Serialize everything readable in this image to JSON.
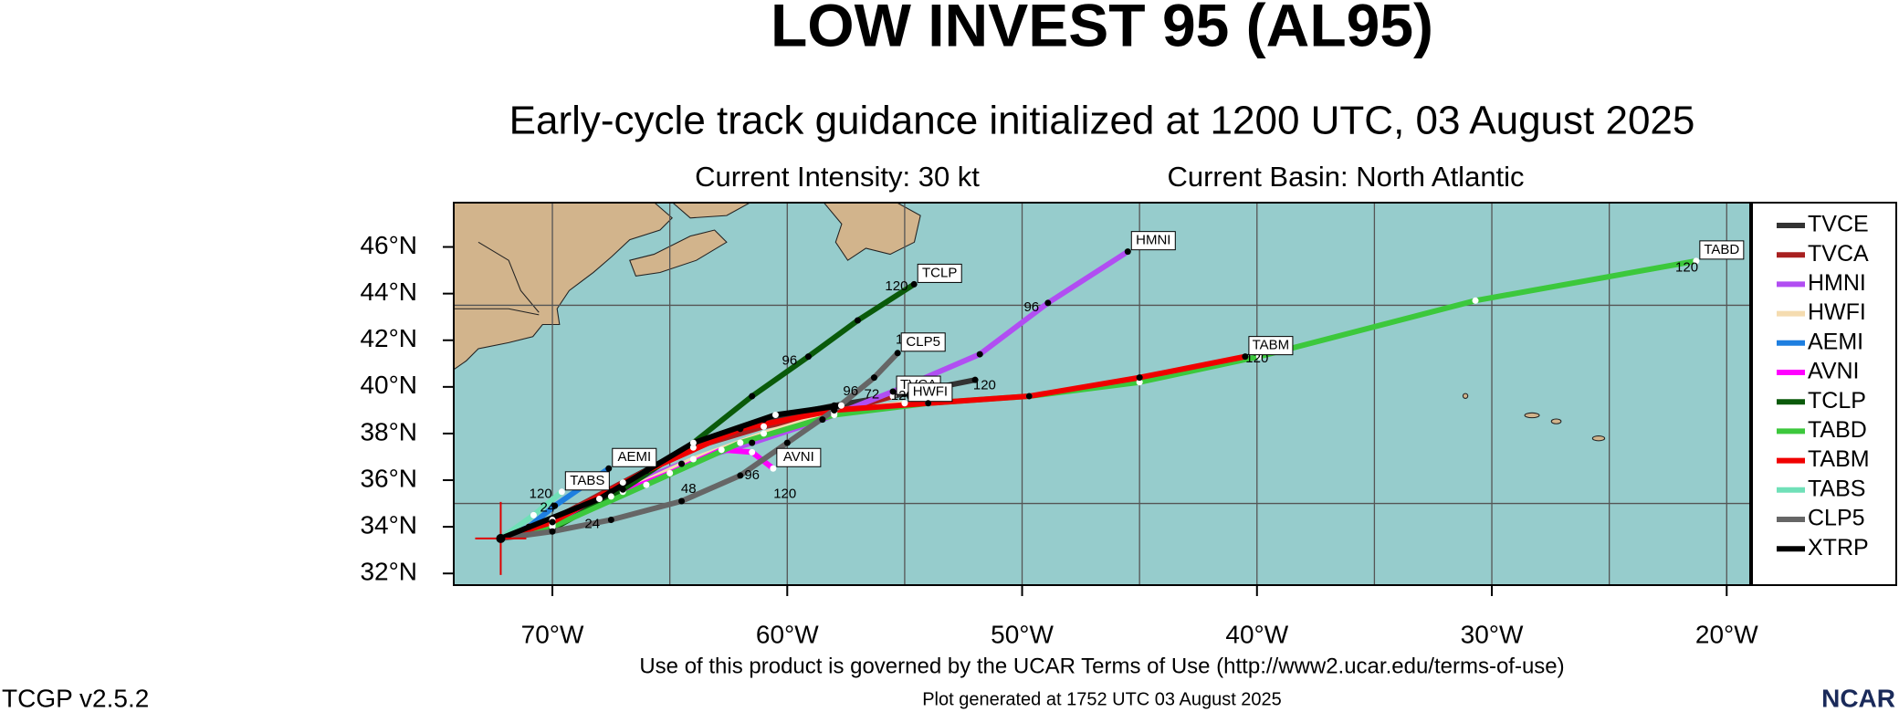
{
  "chart_data": {
    "type": "track_map",
    "title": "LOW INVEST 95 (AL95)",
    "subtitle": "Early-cycle track guidance initialized at 1200 UTC, 03 August 2025",
    "annotations": {
      "intensity": "Current Intensity: 30 kt",
      "basin": "Current Basin: North Atlantic"
    },
    "footer": {
      "terms": "Use of this product is governed by the UCAR Terms of Use (http://www2.ucar.edu/terms-of-use)",
      "version": "TCGP v2.5.2",
      "generated": "Plot generated at 1752 UTC   03 August 2025",
      "logo": "NCAR"
    },
    "xlim": [
      -74.2,
      -19
    ],
    "ylim": [
      31.5,
      47.9
    ],
    "xticks": [
      {
        "value": -70,
        "label": "70°W"
      },
      {
        "value": -60,
        "label": "60°W"
      },
      {
        "value": -50,
        "label": "50°W"
      },
      {
        "value": -40,
        "label": "40°W"
      },
      {
        "value": -30,
        "label": "30°W"
      },
      {
        "value": -20,
        "label": "20°W"
      }
    ],
    "yticks": [
      {
        "value": 32,
        "label": "32°N"
      },
      {
        "value": 34,
        "label": "34°N"
      },
      {
        "value": 36,
        "label": "36°N"
      },
      {
        "value": 38,
        "label": "38°N"
      },
      {
        "value": 40,
        "label": "40°N"
      },
      {
        "value": 42,
        "label": "42°N"
      },
      {
        "value": 44,
        "label": "44°N"
      },
      {
        "value": 46,
        "label": "46°N"
      }
    ],
    "xgrid": [
      -70,
      -65,
      -60,
      -55,
      -50,
      -45,
      -40,
      -35,
      -30,
      -25,
      -20
    ],
    "ygrid": [
      35,
      43.5
    ],
    "current_position": {
      "x": -72.2,
      "y": 33.5,
      "color": "#e00000"
    },
    "series": [
      {
        "name": "TVCE",
        "color": "#333333",
        "end_label": false,
        "x": [
          -72.2,
          -70,
          -67,
          -64,
          -61,
          -58,
          -55,
          -52
        ],
        "y": [
          33.5,
          34.3,
          35.9,
          37.5,
          38.6,
          39.2,
          39.7,
          40.3
        ],
        "hour_labels": [
          {
            "x": -57.3,
            "y": 39.8,
            "hour": 96
          },
          {
            "x": -56.4,
            "y": 39.65,
            "hour": 72
          }
        ]
      },
      {
        "name": "TVCA",
        "color": "#a82020",
        "end_label": true,
        "x": [
          -72.2,
          -70,
          -67,
          -64,
          -61,
          -58,
          -55.5
        ],
        "y": [
          33.5,
          34.3,
          35.9,
          37.4,
          38.3,
          38.9,
          39.6
        ],
        "hour_labels": [
          {
            "x": -51.6,
            "y": 40.05,
            "hour": 120
          }
        ]
      },
      {
        "name": "HMNI",
        "color": "#b14ef2",
        "end_label": true,
        "x": [
          -72.2,
          -70,
          -67.5,
          -64.5,
          -61.5,
          -58.5,
          -55.5,
          -51.8,
          -48.9,
          -45.5
        ],
        "y": [
          33.5,
          34.2,
          35.5,
          36.7,
          37.6,
          38.6,
          39.8,
          41.4,
          43.6,
          45.8
        ],
        "hour_labels": [
          {
            "x": -49.6,
            "y": 43.4,
            "hour": 96
          }
        ]
      },
      {
        "name": "HWFI",
        "color": "#f5dcb0",
        "end_label": true,
        "x": [
          -72.2,
          -70,
          -67,
          -64,
          -61,
          -58,
          -55
        ],
        "y": [
          33.5,
          34.1,
          35.5,
          36.9,
          38,
          38.9,
          39.3
        ],
        "hour_labels": [
          {
            "x": -55.1,
            "y": 39.6,
            "hour": 120
          }
        ]
      },
      {
        "name": "AEMI",
        "color": "#1e7fe0",
        "end_label": true,
        "x": [
          -72.2,
          -71,
          -69.9,
          -68.6,
          -67.6
        ],
        "y": [
          33.5,
          34,
          34.9,
          35.8,
          36.5
        ],
        "hour_labels": []
      },
      {
        "name": "AVNI",
        "color": "#ff00ff",
        "end_label": true,
        "x": [
          -72.2,
          -70,
          -67.5,
          -65,
          -62.8,
          -61.5,
          -60.6
        ],
        "y": [
          33.5,
          34.1,
          35.3,
          36.3,
          37.3,
          37.2,
          36.5
        ],
        "hour_labels": [
          {
            "x": -61.5,
            "y": 36.2,
            "hour": 96
          },
          {
            "x": -60.1,
            "y": 35.4,
            "hour": 120
          }
        ]
      },
      {
        "name": "TCLP",
        "color": "#0a5a0a",
        "end_label": true,
        "x": [
          -72.2,
          -70,
          -67,
          -64,
          -61.5,
          -59.1,
          -57,
          -54.6
        ],
        "y": [
          33.5,
          33.9,
          35.6,
          37.6,
          39.6,
          41.3,
          42.85,
          44.4
        ],
        "hour_labels": [
          {
            "x": -59.9,
            "y": 41.1,
            "hour": 96
          },
          {
            "x": -55.35,
            "y": 44.3,
            "hour": 120
          }
        ]
      },
      {
        "name": "TABD",
        "color": "#3cc83c",
        "end_label": true,
        "x": [
          -72.2,
          -70,
          -66,
          -62,
          -58,
          -54,
          -49.7,
          -45,
          -39.9,
          -30.7,
          -21.3
        ],
        "y": [
          33.5,
          34,
          35.8,
          37.6,
          38.8,
          39.3,
          39.6,
          40.2,
          41.3,
          43.7,
          45.4
        ],
        "hour_labels": [
          {
            "x": -21.7,
            "y": 45.1,
            "hour": 120
          }
        ]
      },
      {
        "name": "TABM",
        "color": "#f00000",
        "end_label": true,
        "x": [
          -72.2,
          -70,
          -66,
          -62,
          -58,
          -54,
          -49.7,
          -45,
          -40.5
        ],
        "y": [
          33.5,
          34.2,
          36.4,
          38.2,
          39,
          39.3,
          39.6,
          40.4,
          41.3
        ],
        "hour_labels": [
          {
            "x": -40,
            "y": 41.2,
            "hour": 120
          }
        ]
      },
      {
        "name": "TABS",
        "color": "#70e0b8",
        "end_label": true,
        "x": [
          -72.2,
          -70.8,
          -69.6
        ],
        "y": [
          33.5,
          34.5,
          35.5
        ],
        "hour_labels": [
          {
            "x": -70.5,
            "y": 35.4,
            "hour": 120
          },
          {
            "x": -70.2,
            "y": 34.8,
            "hour": 24
          }
        ]
      },
      {
        "name": "CLP5",
        "color": "#666666",
        "end_label": true,
        "x": [
          -72.2,
          -70,
          -67.5,
          -64.5,
          -62,
          -60,
          -58,
          -56.3,
          -55.3
        ],
        "y": [
          33.5,
          33.8,
          34.3,
          35.1,
          36.2,
          37.6,
          39,
          40.4,
          41.45
        ],
        "hour_labels": [
          {
            "x": -64.2,
            "y": 35.6,
            "hour": 48
          },
          {
            "x": -54.9,
            "y": 42.0,
            "hour": 120
          }
        ]
      },
      {
        "name": "XTRP",
        "color": "#000000",
        "end_label": false,
        "x": [
          -72.2,
          -68,
          -64,
          -60.5,
          -57.7
        ],
        "y": [
          33.5,
          35.2,
          37.6,
          38.8,
          39.2
        ],
        "hour_labels": [
          {
            "x": -68.3,
            "y": 34.1,
            "hour": 24
          }
        ]
      }
    ]
  }
}
